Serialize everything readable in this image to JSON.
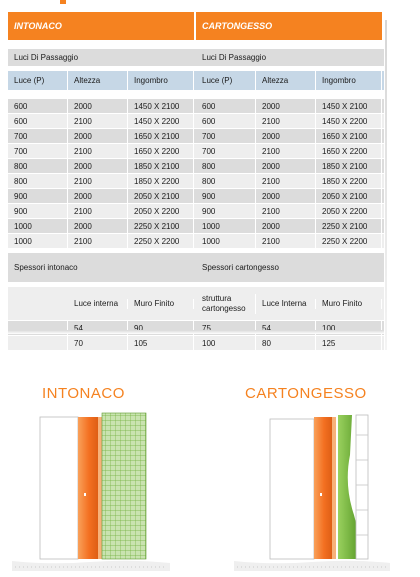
{
  "left": {
    "title": "INTONACO",
    "luci_label": "Luci Di Passaggio",
    "headers": [
      "Luce (P)",
      "Altezza",
      "Ingombro"
    ],
    "rows": [
      [
        "600",
        "2000",
        "1450 X 2100"
      ],
      [
        "600",
        "2100",
        "1450 X 2200"
      ],
      [
        "700",
        "2000",
        "1650 X 2100"
      ],
      [
        "700",
        "2100",
        "1650 X 2200"
      ],
      [
        "800",
        "2000",
        "1850 X 2100"
      ],
      [
        "800",
        "2100",
        "1850 X 2200"
      ],
      [
        "900",
        "2000",
        "2050 X 2100"
      ],
      [
        "900",
        "2100",
        "2050 X 2200"
      ],
      [
        "1000",
        "2000",
        "2250 X 2100"
      ],
      [
        "1000",
        "2100",
        "2250 X 2200"
      ]
    ],
    "spessori_label": "Spessori intonaco",
    "spessori_headers": [
      "",
      "Luce interna",
      "Muro Finito"
    ],
    "spessori_rows": [
      [
        "",
        "54",
        "90"
      ],
      [
        "",
        "70",
        "105"
      ]
    ]
  },
  "right": {
    "title": "CARTONGESSO",
    "luci_label": "Luci Di Passaggio",
    "headers": [
      "Luce (P)",
      "Altezza",
      "Ingombro"
    ],
    "rows": [
      [
        "600",
        "2000",
        "1450 X 2100"
      ],
      [
        "600",
        "2100",
        "1450 X 2200"
      ],
      [
        "700",
        "2000",
        "1650 X 2100"
      ],
      [
        "700",
        "2100",
        "1650 X 2200"
      ],
      [
        "800",
        "2000",
        "1850 X 2100"
      ],
      [
        "800",
        "2100",
        "1850 X 2200"
      ],
      [
        "900",
        "2000",
        "2050 X 2100"
      ],
      [
        "900",
        "2100",
        "2050 X 2200"
      ],
      [
        "1000",
        "2000",
        "2250 X 2100"
      ],
      [
        "1000",
        "2100",
        "2250 X 2200"
      ]
    ],
    "spessori_label": "Spessori cartongesso",
    "spessori_headers": [
      "struttura cartongesso",
      "Luce Interna",
      "Muro Finito"
    ],
    "spessori_rows": [
      [
        "75",
        "54",
        "100"
      ],
      [
        "100",
        "80",
        "125"
      ]
    ]
  },
  "figures": {
    "left_title": "INTONACO",
    "right_title": "CARTONGESSO"
  },
  "colors": {
    "accent": "#f58220",
    "row_gray": "#dcdcdc",
    "row_light": "#eeeeee",
    "header_blue": "#c6d7e6",
    "plaster_green": "#7dc242"
  }
}
